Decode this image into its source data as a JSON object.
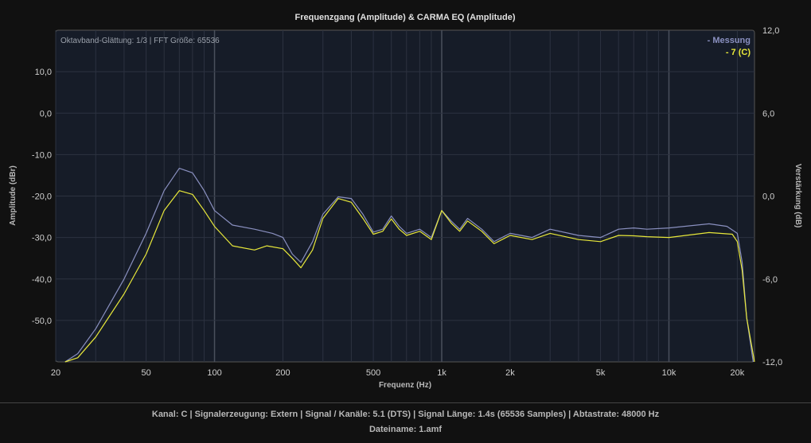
{
  "chart_data": {
    "type": "line",
    "title": "Frequenzgang (Amplitude) & CARMA EQ (Amplitude)",
    "info": "Oktavband-Glättung: 1/3 | FFT Größe: 65536",
    "xlabel": "Frequenz (Hz)",
    "ylabel": "Amplitude (dBr)",
    "y2label": "Verstärkung (dB)",
    "xscale": "log",
    "xlim": [
      20,
      23800
    ],
    "ylim": [
      -60,
      20
    ],
    "y2lim": [
      -12,
      12
    ],
    "grid": true,
    "legend_position": "top-right",
    "xticks": [
      {
        "v": 20,
        "label": "20"
      },
      {
        "v": 50,
        "label": "50"
      },
      {
        "v": 100,
        "label": "100"
      },
      {
        "v": 200,
        "label": "200"
      },
      {
        "v": 500,
        "label": "500"
      },
      {
        "v": 1000,
        "label": "1k"
      },
      {
        "v": 2000,
        "label": "2k"
      },
      {
        "v": 5000,
        "label": "5k"
      },
      {
        "v": 10000,
        "label": "10k"
      },
      {
        "v": 20000,
        "label": "20k"
      }
    ],
    "yticks": [
      {
        "v": 10,
        "label": "10,0"
      },
      {
        "v": 0,
        "label": "0,0"
      },
      {
        "v": -10,
        "label": "-10,0"
      },
      {
        "v": -20,
        "label": "-20,0"
      },
      {
        "v": -30,
        "label": "-30,0"
      },
      {
        "v": -40,
        "label": "-40,0"
      },
      {
        "v": -50,
        "label": "-50,0"
      }
    ],
    "y2ticks": [
      {
        "v": 12,
        "label": "12,0"
      },
      {
        "v": 6,
        "label": "6,0"
      },
      {
        "v": 0,
        "label": "0,0"
      },
      {
        "v": -6,
        "label": "-6,0"
      },
      {
        "v": -12,
        "label": "-12,0"
      }
    ],
    "series": [
      {
        "name": "- Messung",
        "color": "#8a90c0",
        "x": [
          22,
          25,
          30,
          40,
          50,
          60,
          70,
          80,
          90,
          100,
          120,
          150,
          180,
          200,
          220,
          240,
          270,
          300,
          350,
          400,
          450,
          500,
          550,
          600,
          650,
          700,
          800,
          900,
          1000,
          1100,
          1200,
          1300,
          1500,
          1700,
          2000,
          2500,
          3000,
          4000,
          5000,
          6000,
          7000,
          8000,
          10000,
          15000,
          18000,
          20000,
          21000,
          22000,
          23500
        ],
        "y": [
          -60,
          -58,
          -52,
          -40,
          -29,
          -18.7,
          -13.3,
          -14.4,
          -18.7,
          -23.5,
          -27,
          -28,
          -29,
          -30,
          -34,
          -36,
          -31,
          -24.4,
          -20.2,
          -20.6,
          -24.4,
          -28.7,
          -28,
          -24.8,
          -27.3,
          -29,
          -28,
          -30,
          -23.5,
          -26,
          -28,
          -25.4,
          -28,
          -31,
          -29,
          -30,
          -28,
          -29.5,
          -30,
          -28,
          -27.7,
          -28,
          -27.7,
          -26.7,
          -27.3,
          -29,
          -36,
          -49.4,
          -60
        ]
      },
      {
        "name": "- 7 (C)",
        "color": "#e8e83a",
        "x": [
          22,
          25,
          30,
          40,
          50,
          60,
          70,
          80,
          90,
          100,
          120,
          150,
          170,
          200,
          220,
          240,
          270,
          300,
          350,
          400,
          450,
          500,
          550,
          600,
          650,
          700,
          800,
          900,
          1000,
          1100,
          1200,
          1300,
          1500,
          1700,
          2000,
          2500,
          3000,
          4000,
          5000,
          6000,
          7000,
          8000,
          10000,
          15000,
          19000,
          20000,
          21000,
          22000,
          23800
        ],
        "y": [
          -60,
          -59,
          -54,
          -43.6,
          -34,
          -23.5,
          -18.7,
          -19.6,
          -23.5,
          -27.3,
          -32,
          -33,
          -32,
          -32.7,
          -35,
          -37.3,
          -33,
          -25.4,
          -20.6,
          -21.5,
          -25.4,
          -29.2,
          -28.5,
          -25.5,
          -28,
          -29.5,
          -28.5,
          -30.5,
          -23.5,
          -26.5,
          -28.5,
          -26,
          -28.5,
          -31.5,
          -29.5,
          -30.5,
          -29,
          -30.5,
          -31,
          -29.5,
          -29.6,
          -29.8,
          -30,
          -28.8,
          -29.2,
          -31,
          -37.9,
          -49.4,
          -60
        ]
      }
    ]
  },
  "footer": {
    "line1": "Kanal: C  |  Signalerzeugung: Extern   |  Signal / Kanäle: 5.1 (DTS)  |  Signal Länge: 1.4s (65536 Samples)  |  Abtastrate: 48000 Hz",
    "line2": "Dateiname: 1.amf"
  }
}
